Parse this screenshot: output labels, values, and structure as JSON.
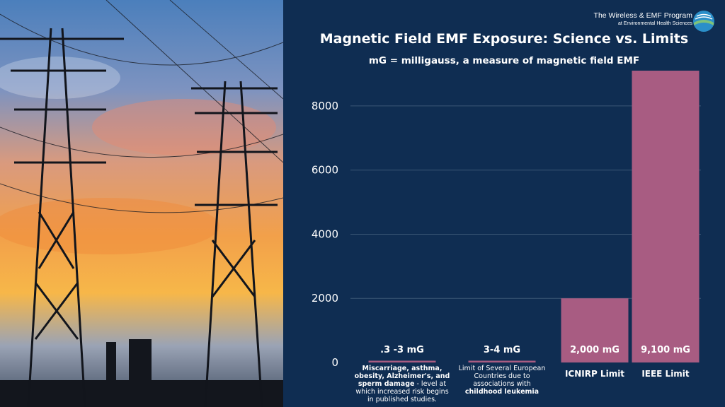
{
  "header": {
    "org_name": "The Wireless & EMF Program",
    "org_sub": "at Environmental Health  Sciences",
    "title": "Magnetic Field EMF Exposure: Science vs. Limits",
    "subtitle": "mG = milligauss, a measure of magnetic field EMF",
    "logo_icon": "globe-icon"
  },
  "colors": {
    "panel": "#0f2d52",
    "bar": "#a85c82",
    "text": "#ffffff",
    "grid": "#3a5675"
  },
  "chart_data": {
    "type": "bar",
    "title": "Magnetic Field EMF Exposure: Science vs. Limits",
    "subtitle": "mG = milligauss, a measure of magnetic field EMF",
    "ylim": [
      0,
      9100
    ],
    "yticks": [
      0,
      2000,
      4000,
      6000,
      8000
    ],
    "ytick_labels": [
      "0",
      "2000",
      "4000",
      "6000",
      "8000"
    ],
    "grid": true,
    "categories": [
      {
        "parts": [
          {
            "t": "Miscarriage, asthma, obesity, Alzheimer's, and sperm damage",
            "b": true
          },
          {
            "t": " - level at which increased risk begins in published studies.",
            "b": false
          }
        ]
      },
      {
        "parts": [
          {
            "t": "Limit of Several European Countries  due to associations with ",
            "b": false
          },
          {
            "t": "childhood leukemia",
            "b": true
          }
        ]
      },
      {
        "label": "ICNIRP Limit"
      },
      {
        "label": "IEEE Limit"
      }
    ],
    "values": [
      3,
      4,
      2000,
      9100
    ],
    "data_labels": [
      ".3 -3 mG",
      "3-4 mG",
      "2,000 mG",
      "9,100 mG"
    ]
  }
}
